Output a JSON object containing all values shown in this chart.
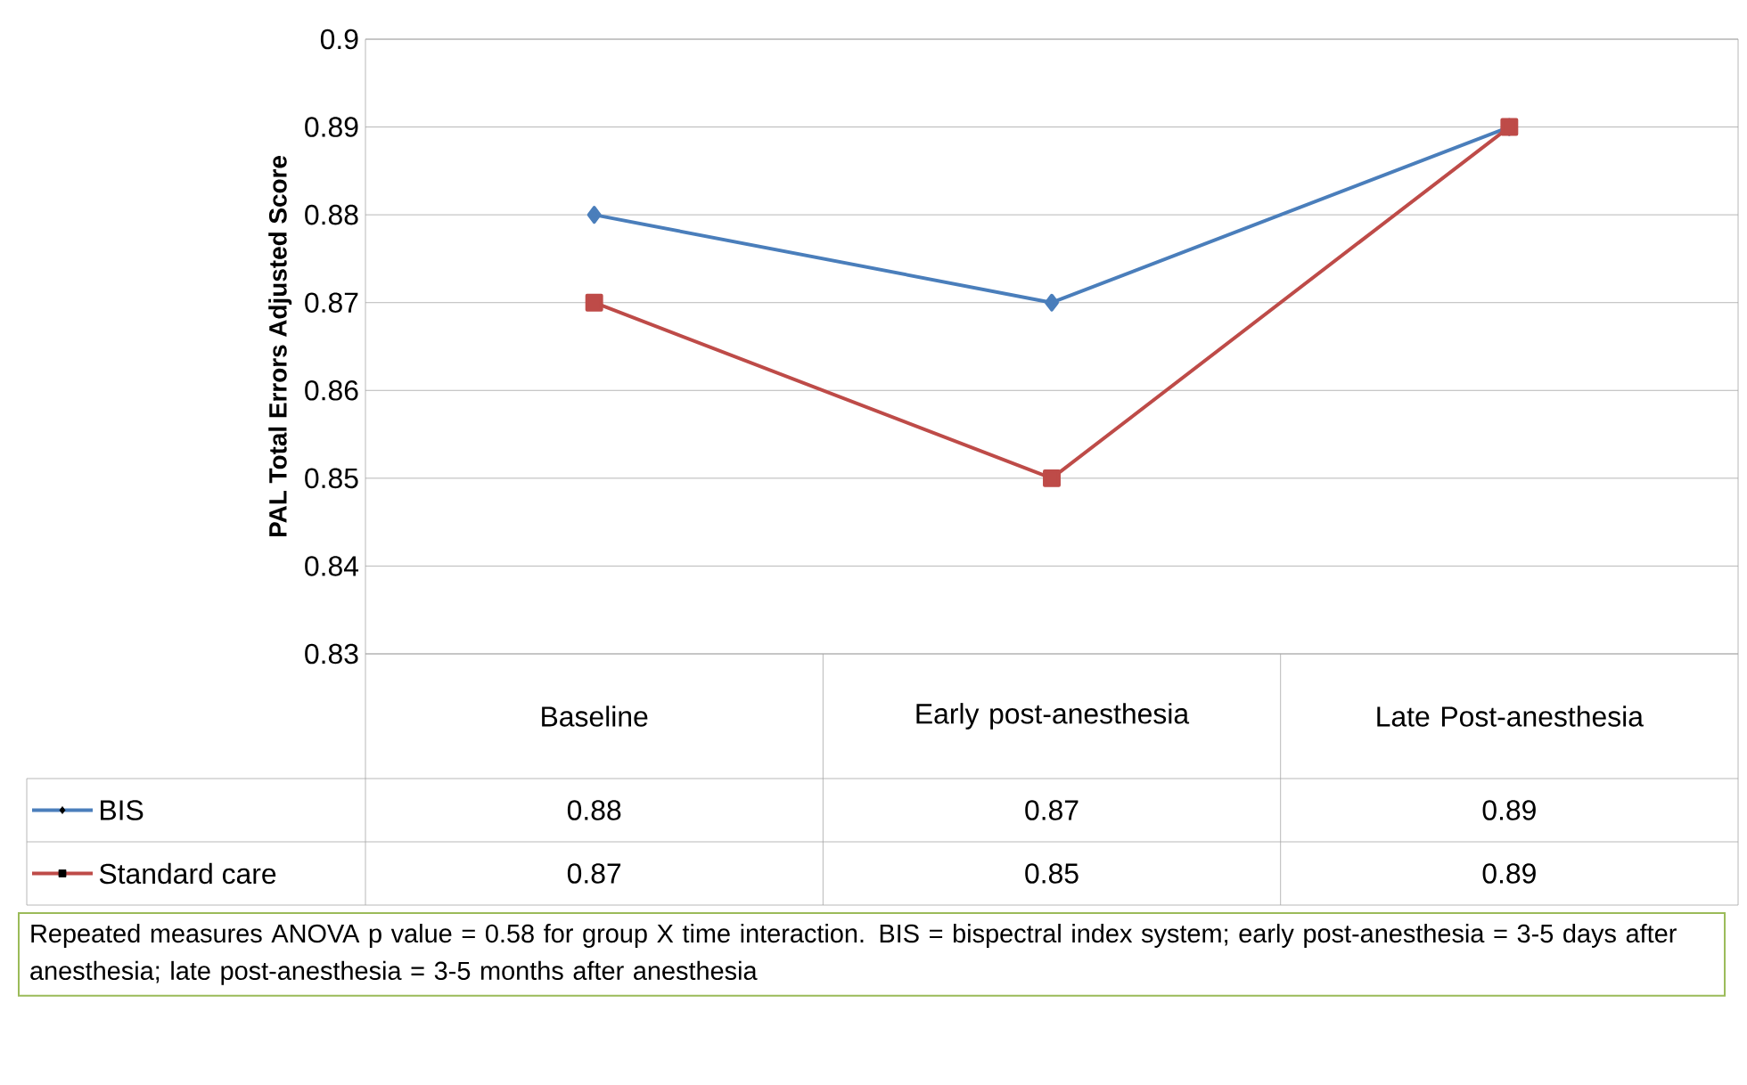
{
  "chart_data": {
    "type": "line",
    "ylabel": "PAL Total Errors Adjusted Score",
    "categories": [
      "Baseline",
      "Early post-anesthesia",
      "Late Post-anesthesia"
    ],
    "series": [
      {
        "name": "BIS",
        "color": "#4a7ebb",
        "marker": "diamond",
        "values": [
          0.88,
          0.87,
          0.89
        ]
      },
      {
        "name": "Standard care",
        "color": "#be4b48",
        "marker": "square",
        "values": [
          0.87,
          0.85,
          0.89
        ]
      }
    ],
    "ylim": [
      0.83,
      0.9
    ],
    "yticks": [
      0.83,
      0.84,
      0.85,
      0.86,
      0.87,
      0.88,
      0.89,
      0.9
    ],
    "grid": "y",
    "legend": "bottom",
    "data_labels": true,
    "annotations": [
      "Repeated measures ANOVA p value = 0.58 for group X time interaction.  BIS = bispectral index system; early post-anesthesia = 3-5 days after anesthesia; late post-anesthesia = 3-5 months after anesthesia"
    ]
  }
}
